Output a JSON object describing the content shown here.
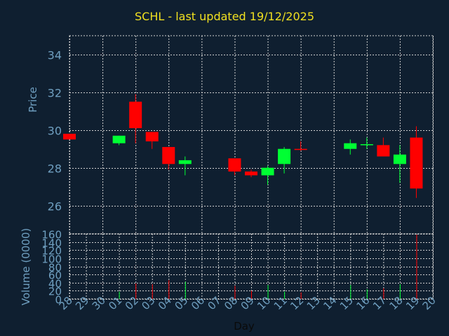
{
  "title": "SCHL - last updated 19/12/2025",
  "colors": {
    "background": "#0f1f30",
    "title": "#f0e020",
    "text": "#6f9fc0",
    "grid": "#d0d0d0",
    "up": "#00ff33",
    "down": "#ff0000"
  },
  "chart_data": [
    {
      "type": "candlestick",
      "ylabel": "Price",
      "ylim": [
        24.5,
        35.0
      ],
      "yticks": [
        26,
        28,
        30,
        32,
        34
      ],
      "grid": true,
      "x": [
        "28",
        "29",
        "30",
        "01",
        "02",
        "03",
        "04",
        "05",
        "06",
        "07",
        "08",
        "09",
        "10",
        "11",
        "12",
        "13",
        "14",
        "15",
        "16",
        "17",
        "18",
        "19",
        "20"
      ],
      "candles": [
        {
          "day": "28",
          "open": 29.8,
          "high": 29.8,
          "low": 29.5,
          "close": 29.5
        },
        {
          "day": "01",
          "open": 29.3,
          "high": 29.7,
          "low": 29.2,
          "close": 29.7
        },
        {
          "day": "02",
          "open": 31.5,
          "high": 31.9,
          "low": 29.3,
          "close": 30.1
        },
        {
          "day": "03",
          "open": 29.9,
          "high": 29.9,
          "low": 29.0,
          "close": 29.4
        },
        {
          "day": "04",
          "open": 29.1,
          "high": 29.1,
          "low": 27.9,
          "close": 28.2
        },
        {
          "day": "05",
          "open": 28.2,
          "high": 28.6,
          "low": 27.6,
          "close": 28.4
        },
        {
          "day": "08",
          "open": 28.5,
          "high": 28.5,
          "low": 27.6,
          "close": 27.8
        },
        {
          "day": "09",
          "open": 27.8,
          "high": 27.9,
          "low": 27.5,
          "close": 27.6
        },
        {
          "day": "10",
          "open": 27.6,
          "high": 28.1,
          "low": 27.1,
          "close": 28.0
        },
        {
          "day": "11",
          "open": 28.2,
          "high": 29.1,
          "low": 27.7,
          "close": 29.0
        },
        {
          "day": "12",
          "open": 29.0,
          "high": 29.4,
          "low": 28.9,
          "close": 28.95
        },
        {
          "day": "15",
          "open": 29.0,
          "high": 29.5,
          "low": 28.7,
          "close": 29.3
        },
        {
          "day": "16",
          "open": 29.2,
          "high": 29.6,
          "low": 29.0,
          "close": 29.25
        },
        {
          "day": "17",
          "open": 29.2,
          "high": 29.6,
          "low": 28.6,
          "close": 28.6
        },
        {
          "day": "18",
          "open": 28.2,
          "high": 29.2,
          "low": 27.2,
          "close": 28.7
        },
        {
          "day": "19",
          "open": 29.6,
          "high": 30.2,
          "low": 26.4,
          "close": 26.9
        }
      ]
    },
    {
      "type": "bar",
      "ylabel": "Volume (0000)",
      "xlabel": "Day",
      "ylim": [
        0,
        160
      ],
      "yticks": [
        0,
        20,
        40,
        60,
        80,
        100,
        120,
        140,
        160
      ],
      "grid": true,
      "categories": [
        "28",
        "29",
        "30",
        "01",
        "02",
        "03",
        "04",
        "05",
        "06",
        "07",
        "08",
        "09",
        "10",
        "11",
        "12",
        "13",
        "14",
        "15",
        "16",
        "17",
        "18",
        "19",
        "20"
      ],
      "values": [
        0,
        0,
        0,
        18,
        38,
        36,
        46,
        42,
        0,
        0,
        32,
        20,
        34,
        18,
        16,
        0,
        0,
        34,
        24,
        26,
        36,
        158,
        0
      ],
      "direction": [
        "down",
        "none",
        "none",
        "up",
        "down",
        "down",
        "down",
        "up",
        "none",
        "none",
        "down",
        "down",
        "up",
        "up",
        "down",
        "none",
        "none",
        "up",
        "up",
        "down",
        "up",
        "down",
        "none"
      ]
    }
  ]
}
